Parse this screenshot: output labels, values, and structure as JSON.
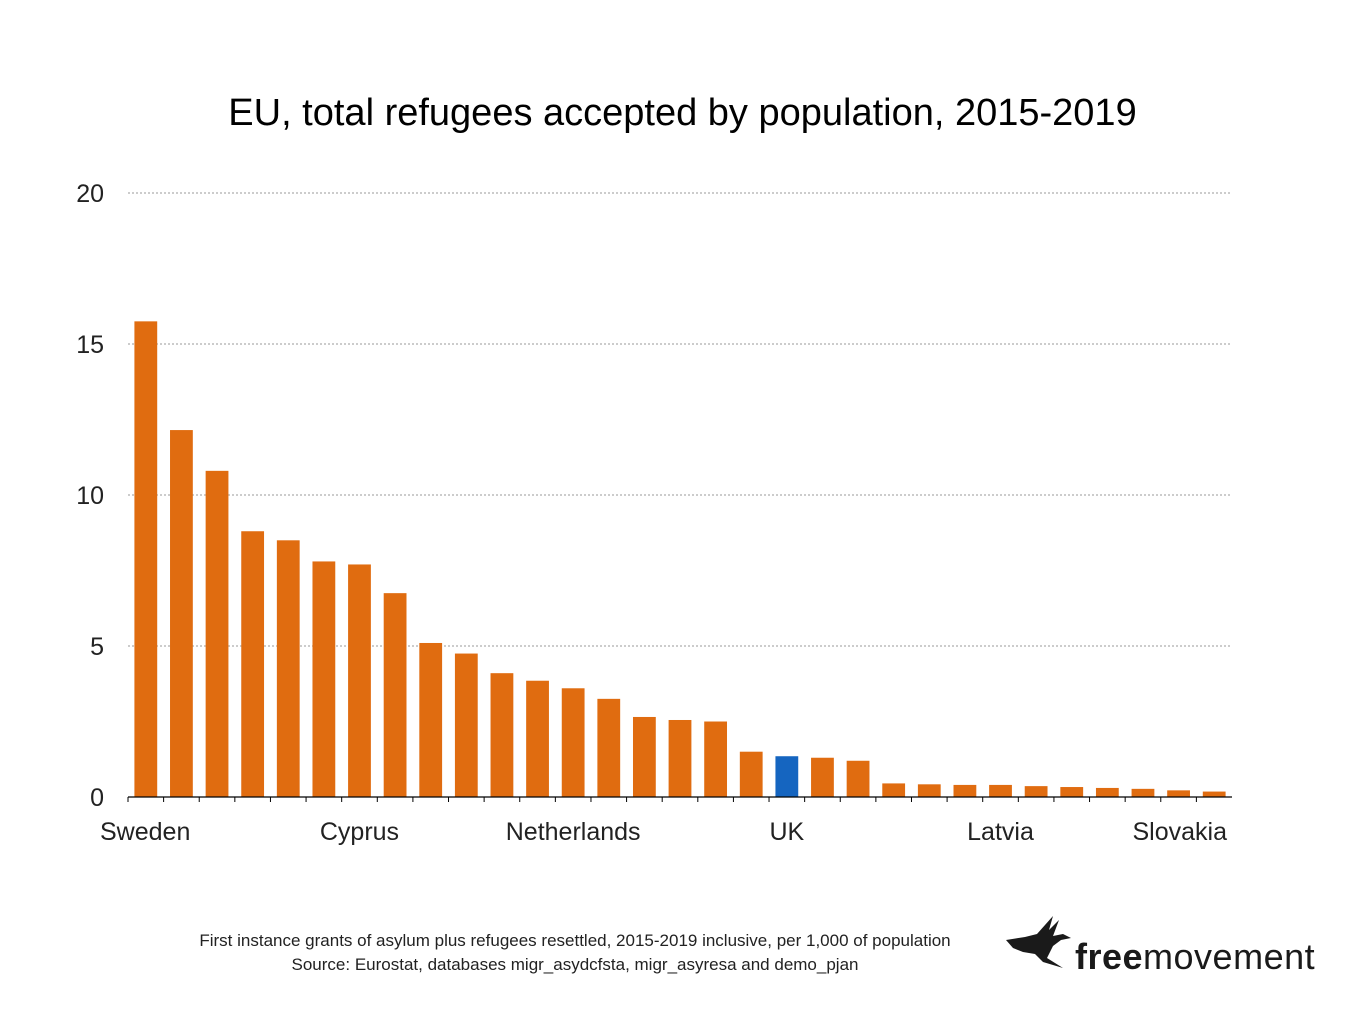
{
  "chart_data": {
    "type": "bar",
    "title": "EU, total refugees accepted by population, 2015-2019",
    "xlabel": "",
    "ylabel": "",
    "ylim": [
      0,
      20
    ],
    "yticks": [
      "0",
      "5",
      "10",
      "15",
      "20"
    ],
    "grid": "horizontal dotted",
    "categories": [
      "Sweden",
      "",
      "",
      "",
      "",
      "",
      "Cyprus",
      "",
      "",
      "",
      "",
      "",
      "Netherlands",
      "",
      "",
      "",
      "",
      "",
      "UK",
      "",
      "",
      "",
      "",
      "",
      "Latvia",
      "",
      "",
      "",
      "",
      "",
      "Slovakia"
    ],
    "shown_category_labels": [
      "Sweden",
      "Cyprus",
      "Netherlands",
      "UK",
      "Latvia",
      "Slovakia"
    ],
    "values": [
      15.75,
      12.15,
      10.8,
      8.8,
      8.5,
      7.8,
      7.7,
      6.75,
      5.1,
      4.75,
      4.1,
      3.85,
      3.6,
      3.25,
      2.65,
      2.55,
      2.5,
      1.5,
      1.35,
      1.3,
      1.2,
      0.45,
      0.42,
      0.4,
      0.4,
      0.36,
      0.33,
      0.3,
      0.27,
      0.22,
      0.18
    ],
    "bar_color": "#e06c10",
    "highlight_color": "#1565c0",
    "highlight_category": "UK"
  },
  "caption": {
    "line1": "First instance grants of asylum plus refugees resettled, 2015-2019 inclusive, per 1,000 of population",
    "line2": "Source: Eurostat, databases migr_asydcfsta, migr_asyresa and demo_pjan"
  },
  "logo": {
    "bold": "free",
    "light": "movement",
    "icon": "bird-icon"
  }
}
